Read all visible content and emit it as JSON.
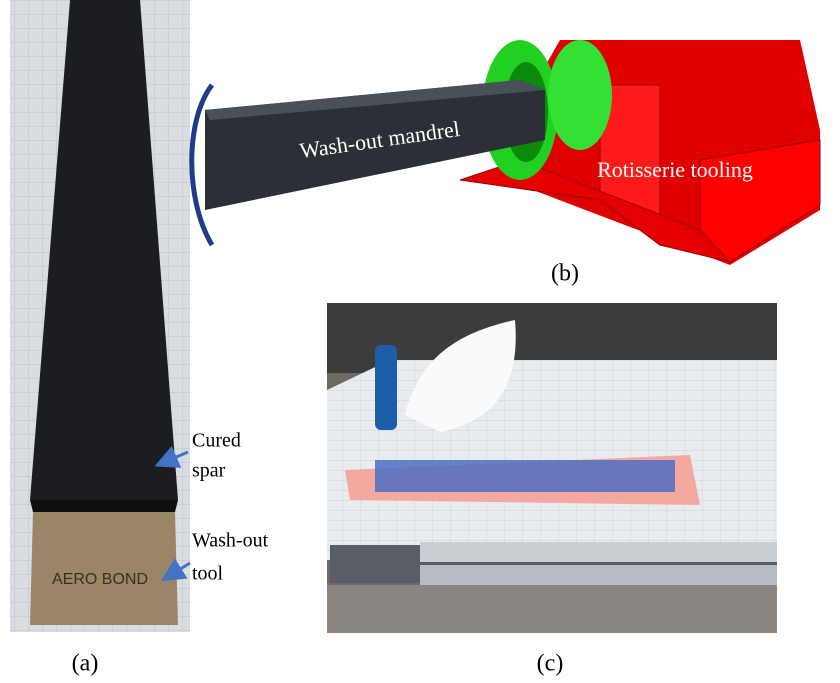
{
  "panel_a": {
    "caption": "(a)",
    "annotations": [
      {
        "lines": [
          "Cured",
          "spar"
        ]
      },
      {
        "lines": [
          "Wash-out",
          "tool"
        ]
      }
    ]
  },
  "panel_b": {
    "caption": "(b)",
    "labels": [
      "Wash-out mandrel",
      "Rotisserie tooling"
    ]
  },
  "panel_c": {
    "caption": "(c)"
  }
}
